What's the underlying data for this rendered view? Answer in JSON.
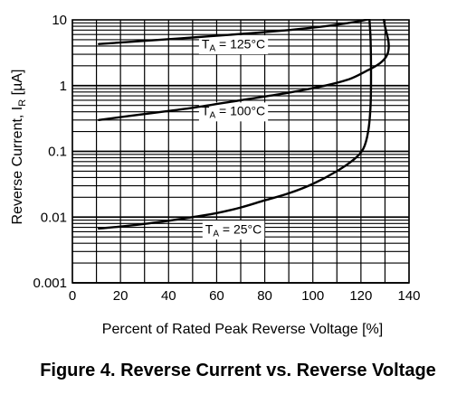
{
  "figure_title": "Figure 4. Reverse Current vs. Reverse Voltage",
  "chart_data": {
    "type": "line",
    "xlabel": "Percent of Rated Peak Reverse Voltage [%]",
    "ylabel": "Reverse Current, I",
    "ylabel_sub": "R",
    "ylabel_unit": "[µA]",
    "xlim": [
      0,
      140
    ],
    "ylim": [
      0.001,
      10
    ],
    "yscale": "log",
    "grid": true,
    "x_ticks": [
      0,
      20,
      40,
      60,
      80,
      100,
      120,
      140
    ],
    "x_tick_labels": [
      "0",
      "20",
      "40",
      "60",
      "80",
      "100",
      "120",
      "140"
    ],
    "y_ticks": [
      0.001,
      0.01,
      0.1,
      1,
      10
    ],
    "y_tick_labels": [
      "0.001",
      "0.01",
      "0.1",
      "1",
      "10"
    ],
    "series": [
      {
        "annotation": {
          "main": "T",
          "sub": "A",
          "rest": " = 125°C",
          "x": 67,
          "y": 4.2
        },
        "x": [
          11,
          30,
          50,
          70,
          90,
          105,
          115,
          122,
          123
        ],
        "y": [
          4.3,
          4.8,
          5.4,
          6.1,
          7.0,
          8.0,
          9.0,
          10,
          10.5
        ]
      },
      {
        "annotation": {
          "main": "T",
          "sub": "A",
          "rest": " = 100°C",
          "x": 67,
          "y": 0.4
        },
        "x": [
          11,
          30,
          50,
          70,
          90,
          105,
          115,
          122,
          128,
          131,
          131.5,
          130,
          129.5
        ],
        "y": [
          0.3,
          0.37,
          0.46,
          0.6,
          0.78,
          1.0,
          1.25,
          1.65,
          2.2,
          3.0,
          4.5,
          8.0,
          10.5
        ]
      },
      {
        "annotation": {
          "main": "T",
          "sub": "A",
          "rest": " = 25°C",
          "x": 67,
          "y": 0.0064
        },
        "x": [
          11,
          25,
          40,
          50,
          60,
          70,
          80,
          90,
          100,
          110,
          117,
          121,
          123,
          124,
          124.2,
          124,
          123.5
        ],
        "y": [
          0.0067,
          0.0075,
          0.0088,
          0.01,
          0.0115,
          0.014,
          0.018,
          0.023,
          0.032,
          0.05,
          0.075,
          0.11,
          0.2,
          0.5,
          1.5,
          5.0,
          10.5
        ]
      }
    ]
  }
}
